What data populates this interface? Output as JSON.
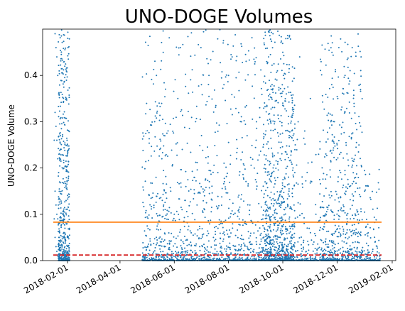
{
  "chart_data": {
    "type": "scatter",
    "title": "UNO-DOGE Volumes",
    "xlabel": "",
    "ylabel": "UNO-DOGE Volume",
    "xlim": [
      "2018-01-04",
      "2019-02-05"
    ],
    "ylim": [
      0.0,
      0.5
    ],
    "grid": false,
    "legend": "none",
    "x_ticks": [
      "2018-02-01",
      "2018-04-01",
      "2018-06-01",
      "2018-08-01",
      "2018-10-01",
      "2018-12-01",
      "2019-02-01"
    ],
    "y_ticks": [
      {
        "value": 0.0,
        "label": "0.0"
      },
      {
        "value": 0.1,
        "label": "0.1"
      },
      {
        "value": 0.2,
        "label": "0.2"
      },
      {
        "value": 0.3,
        "label": "0.3"
      },
      {
        "value": 0.4,
        "label": "0.4"
      }
    ],
    "colors": {
      "points": "#1f77b4",
      "mean_line": "#ff7f0e",
      "median_line": "#d62728"
    },
    "reference_lines": [
      {
        "type": "mean",
        "style": "solid",
        "value": 0.083
      },
      {
        "type": "median",
        "style": "dashed",
        "value": 0.012
      }
    ],
    "series": [
      {
        "type": "scatter",
        "points": [
          [
            "2018-01-18",
            0.49
          ],
          [
            "2018-01-19",
            0.46
          ],
          [
            "2018-01-20",
            0.44
          ],
          [
            "2018-01-21",
            0.4
          ],
          [
            "2018-01-22",
            0.36
          ],
          [
            "2018-01-18",
            0.32
          ],
          [
            "2018-01-19",
            0.29
          ],
          [
            "2018-01-20",
            0.26
          ],
          [
            "2018-01-21",
            0.22
          ],
          [
            "2018-01-22",
            0.19
          ],
          [
            "2018-01-23",
            0.17
          ],
          [
            "2018-01-18",
            0.15
          ],
          [
            "2018-01-19",
            0.12
          ],
          [
            "2018-01-20",
            0.1
          ],
          [
            "2018-01-21",
            0.09
          ],
          [
            "2018-01-22",
            0.08
          ],
          [
            "2018-01-23",
            0.06
          ],
          [
            "2018-01-18",
            0.05
          ],
          [
            "2018-01-19",
            0.03
          ],
          [
            "2018-01-20",
            0.02
          ],
          [
            "2018-01-21",
            0.01
          ],
          [
            "2018-01-22",
            0.005
          ],
          [
            "2018-01-17",
            0.26
          ],
          [
            "2018-01-17",
            0.09
          ],
          [
            "2018-01-24",
            0.04
          ],
          [
            "2018-05-10",
            0.3
          ],
          [
            "2018-05-12",
            0.4
          ],
          [
            "2018-05-15",
            0.34
          ],
          [
            "2018-05-18",
            0.22
          ],
          [
            "2018-05-20",
            0.12
          ],
          [
            "2018-05-25",
            0.28
          ],
          [
            "2018-05-28",
            0.15
          ],
          [
            "2018-06-01",
            0.1
          ],
          [
            "2018-06-05",
            0.35
          ],
          [
            "2018-06-08",
            0.46
          ],
          [
            "2018-06-10",
            0.24
          ],
          [
            "2018-06-14",
            0.16
          ],
          [
            "2018-06-20",
            0.06
          ],
          [
            "2018-06-25",
            0.3
          ],
          [
            "2018-07-01",
            0.46
          ],
          [
            "2018-07-05",
            0.14
          ],
          [
            "2018-07-10",
            0.4
          ],
          [
            "2018-07-15",
            0.05
          ],
          [
            "2018-07-20",
            0.19
          ],
          [
            "2018-07-25",
            0.08
          ],
          [
            "2018-08-01",
            0.4
          ],
          [
            "2018-08-05",
            0.44
          ],
          [
            "2018-08-10",
            0.22
          ],
          [
            "2018-08-15",
            0.03
          ],
          [
            "2018-08-20",
            0.39
          ],
          [
            "2018-08-25",
            0.12
          ],
          [
            "2018-09-01",
            0.26
          ],
          [
            "2018-09-05",
            0.33
          ],
          [
            "2018-09-10",
            0.47
          ],
          [
            "2018-09-12",
            0.28
          ],
          [
            "2018-09-15",
            0.44
          ],
          [
            "2018-09-18",
            0.37
          ],
          [
            "2018-09-20",
            0.49
          ],
          [
            "2018-09-22",
            0.3
          ],
          [
            "2018-09-25",
            0.41
          ],
          [
            "2018-09-28",
            0.22
          ],
          [
            "2018-10-01",
            0.45
          ],
          [
            "2018-10-03",
            0.18
          ],
          [
            "2018-10-05",
            0.36
          ],
          [
            "2018-10-08",
            0.15
          ],
          [
            "2018-10-12",
            0.33
          ],
          [
            "2018-10-15",
            0.25
          ],
          [
            "2018-10-20",
            0.44
          ],
          [
            "2018-10-25",
            0.08
          ],
          [
            "2018-11-01",
            0.35
          ],
          [
            "2018-11-05",
            0.04
          ],
          [
            "2018-11-15",
            0.02
          ],
          [
            "2018-11-25",
            0.38
          ],
          [
            "2018-11-28",
            0.3
          ],
          [
            "2018-12-01",
            0.25
          ],
          [
            "2018-12-03",
            0.46
          ],
          [
            "2018-12-05",
            0.19
          ],
          [
            "2018-12-08",
            0.12
          ],
          [
            "2018-12-10",
            0.4
          ],
          [
            "2018-12-12",
            0.08
          ],
          [
            "2018-12-15",
            0.16
          ],
          [
            "2018-12-18",
            0.46
          ],
          [
            "2018-12-20",
            0.06
          ],
          [
            "2018-12-22",
            0.45
          ],
          [
            "2018-12-25",
            0.1
          ],
          [
            "2018-12-28",
            0.44
          ],
          [
            "2019-01-01",
            0.15
          ],
          [
            "2019-01-05",
            0.06
          ],
          [
            "2019-01-10",
            0.02
          ],
          [
            "2019-01-15",
            0.01
          ]
        ]
      }
    ]
  }
}
